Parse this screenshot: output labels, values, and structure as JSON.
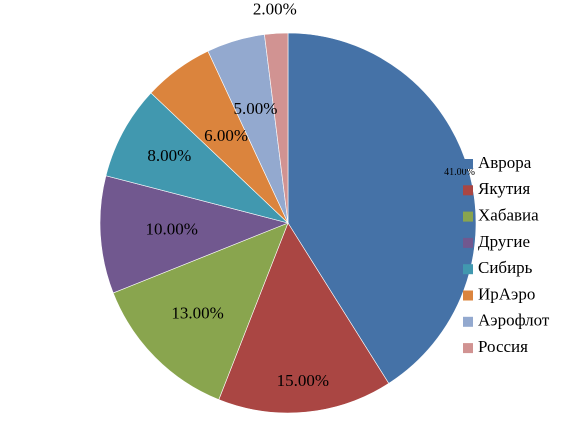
{
  "chart_data": {
    "type": "pie",
    "title": "",
    "legend_position": "right",
    "slices": [
      {
        "name": "Аврора",
        "value": 41,
        "label": "41.00%",
        "color": "#4572A7"
      },
      {
        "name": "Якутия",
        "value": 15,
        "label": "15.00%",
        "color": "#AA4643"
      },
      {
        "name": "Хабавиа",
        "value": 13,
        "label": "13.00%",
        "color": "#89A54E"
      },
      {
        "name": "Другие",
        "value": 10,
        "label": "10.00%",
        "color": "#71588F"
      },
      {
        "name": "Сибирь",
        "value": 8,
        "label": "8.00%",
        "color": "#4198AF"
      },
      {
        "name": "ИрАэро",
        "value": 6,
        "label": "6.00%",
        "color": "#DB843D"
      },
      {
        "name": "Аэрофлот",
        "value": 5,
        "label": "5.00%",
        "color": "#93A9CF"
      },
      {
        "name": "Россия",
        "value": 2,
        "label": "2.00%",
        "color": "#D19392"
      }
    ]
  }
}
